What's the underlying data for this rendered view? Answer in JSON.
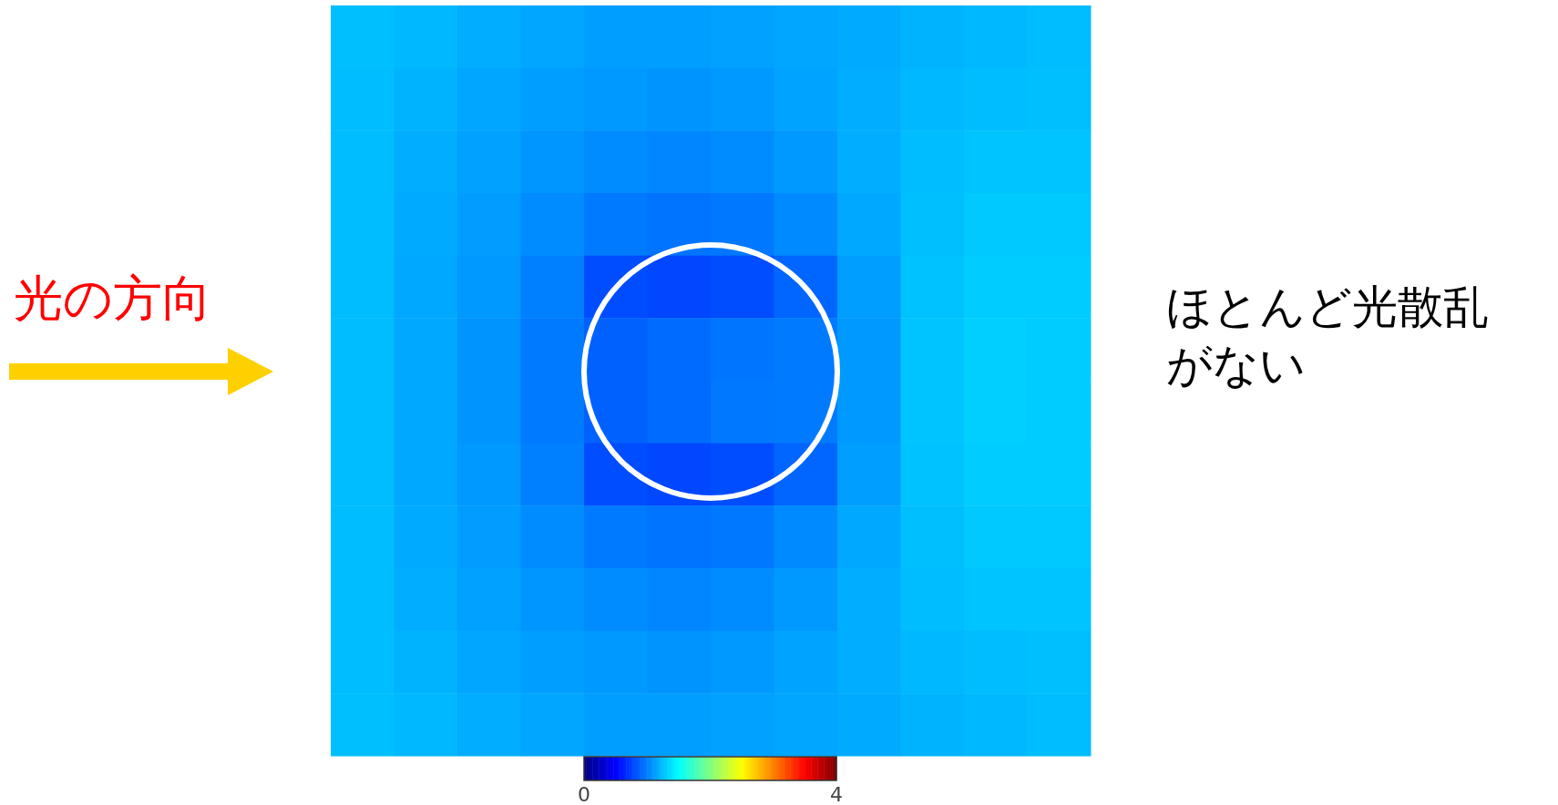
{
  "chart_data": {
    "type": "heatmap",
    "categories": [
      null,
      null,
      null,
      null,
      null,
      null,
      null,
      null,
      null,
      null,
      null,
      null
    ],
    "y_categories": [
      null,
      null,
      null,
      null,
      null,
      null,
      null,
      null,
      null,
      null,
      null,
      null
    ],
    "cells": [
      [
        1.25,
        1.22,
        1.18,
        1.15,
        1.12,
        1.12,
        1.13,
        1.15,
        1.17,
        1.2,
        1.22,
        1.24
      ],
      [
        1.24,
        1.2,
        1.15,
        1.12,
        1.1,
        1.08,
        1.1,
        1.14,
        1.18,
        1.22,
        1.24,
        1.25
      ],
      [
        1.24,
        1.18,
        1.13,
        1.09,
        1.05,
        1.03,
        1.05,
        1.1,
        1.18,
        1.24,
        1.27,
        1.27
      ],
      [
        1.24,
        1.17,
        1.11,
        1.05,
        0.98,
        0.95,
        0.97,
        1.04,
        1.16,
        1.25,
        1.29,
        1.29
      ],
      [
        1.24,
        1.16,
        1.1,
        1.0,
        0.8,
        0.78,
        0.8,
        0.9,
        1.12,
        1.26,
        1.3,
        1.3
      ],
      [
        1.24,
        1.16,
        1.08,
        0.98,
        0.88,
        0.92,
        0.96,
        0.98,
        1.1,
        1.27,
        1.31,
        1.3
      ],
      [
        1.24,
        1.16,
        1.08,
        0.98,
        0.88,
        0.92,
        0.97,
        0.98,
        1.1,
        1.27,
        1.31,
        1.3
      ],
      [
        1.24,
        1.16,
        1.1,
        1.0,
        0.8,
        0.78,
        0.8,
        0.9,
        1.12,
        1.26,
        1.3,
        1.3
      ],
      [
        1.24,
        1.17,
        1.11,
        1.05,
        0.98,
        0.95,
        0.97,
        1.04,
        1.16,
        1.25,
        1.29,
        1.29
      ],
      [
        1.24,
        1.18,
        1.13,
        1.09,
        1.05,
        1.03,
        1.05,
        1.1,
        1.18,
        1.24,
        1.27,
        1.27
      ],
      [
        1.24,
        1.2,
        1.15,
        1.12,
        1.1,
        1.08,
        1.1,
        1.14,
        1.18,
        1.22,
        1.24,
        1.25
      ],
      [
        1.25,
        1.22,
        1.18,
        1.15,
        1.12,
        1.12,
        1.13,
        1.15,
        1.17,
        1.2,
        1.22,
        1.24
      ]
    ],
    "clim": [
      0,
      4
    ],
    "cticks": [
      0,
      4
    ],
    "tick_labels": false,
    "annotations": [
      "光の方向",
      "ほとんど光散乱がない"
    ]
  }
}
